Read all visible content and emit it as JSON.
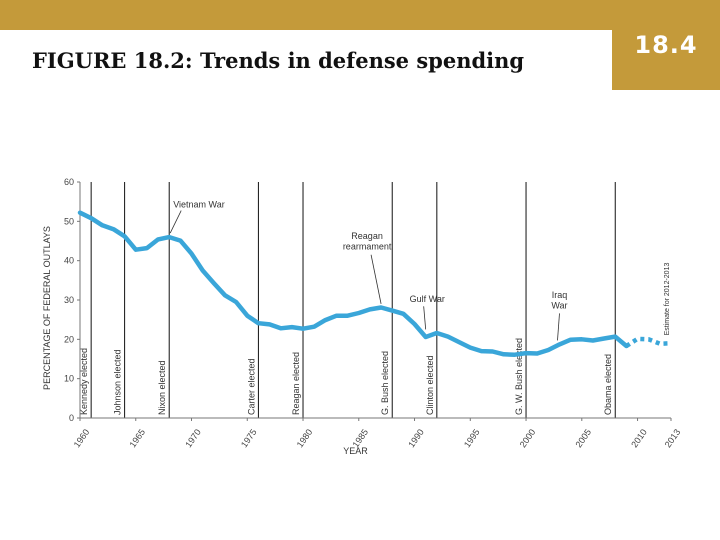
{
  "slide": {
    "title": "FIGURE 18.2: Trends in defense spending",
    "badge": "18.4",
    "accent_color": "#c49a3a"
  },
  "chart_data": {
    "type": "line",
    "title": "FIGURE 18.2: Trends in defense spending",
    "xlabel": "YEAR",
    "ylabel": "PERCENTAGE OF FEDERAL OUTLAYS",
    "xlim": [
      1960,
      2013
    ],
    "ylim": [
      0,
      60
    ],
    "x_ticks": [
      1960,
      1965,
      1970,
      1975,
      1980,
      1985,
      1990,
      1995,
      2000,
      2005,
      2010,
      2013
    ],
    "y_ticks": [
      0,
      10,
      20,
      30,
      40,
      50,
      60
    ],
    "grid": false,
    "line_color": "#3aa6d9",
    "series": [
      {
        "x": [
          1960,
          1961,
          1962,
          1963,
          1964,
          1965,
          1966,
          1967,
          1968,
          1969,
          1970,
          1971,
          1972,
          1973,
          1974,
          1975,
          1976,
          1977,
          1978,
          1979,
          1980,
          1981,
          1982,
          1983,
          1984,
          1985,
          1986,
          1987,
          1988,
          1989,
          1990,
          1991,
          1992,
          1993,
          1994,
          1995,
          1996,
          1997,
          1998,
          1999,
          2000,
          2001,
          2002,
          2003,
          2004,
          2005,
          2006,
          2007,
          2008,
          2009
        ],
        "y": [
          52.2,
          50.8,
          49.0,
          48.0,
          46.2,
          42.8,
          43.2,
          45.4,
          46.0,
          45.1,
          41.8,
          37.5,
          34.3,
          31.2,
          29.5,
          26.0,
          24.1,
          23.8,
          22.8,
          23.1,
          22.7,
          23.2,
          24.9,
          26.0,
          26.0,
          26.7,
          27.6,
          28.1,
          27.3,
          26.5,
          23.9,
          20.6,
          21.6,
          20.7,
          19.3,
          17.9,
          17.0,
          16.9,
          16.2,
          16.1,
          16.5,
          16.4,
          17.3,
          18.7,
          19.9,
          20.0,
          19.7,
          20.2,
          20.7,
          18.3
        ]
      },
      {
        "name": "Estimate for 2012-2013",
        "x": [
          2009,
          2010,
          2011,
          2012,
          2013
        ],
        "y": [
          18.3,
          20.1,
          20.0,
          18.9,
          19.0
        ]
      }
    ],
    "events": [
      {
        "year": 1961,
        "label": "Kennedy elected"
      },
      {
        "year": 1964,
        "label": "Johnson elected"
      },
      {
        "year": 1968,
        "label": "Nixon elected"
      },
      {
        "year": 1976,
        "label": "Carter elected"
      },
      {
        "year": 1980,
        "label": "Reagan elected"
      },
      {
        "year": 1988,
        "label": "G. Bush elected"
      },
      {
        "year": 1992,
        "label": "Clinton elected"
      },
      {
        "year": 2000,
        "label": "G. W. Bush elected"
      },
      {
        "year": 2008,
        "label": "Obama elected"
      }
    ],
    "annotations": [
      {
        "text": [
          "Vietnam War"
        ],
        "x": 1968,
        "y": 46
      },
      {
        "text": [
          "Reagan",
          "rearmament"
        ],
        "x": 1987,
        "y": 28
      },
      {
        "text": [
          "Gulf War"
        ],
        "x": 1991,
        "y": 21.5
      },
      {
        "text": [
          "Iraq",
          "War"
        ],
        "x": 2003,
        "y": 18.7
      },
      {
        "text": [
          "Estimate for 2012-2013"
        ],
        "x": 2012,
        "y": 19
      }
    ]
  }
}
